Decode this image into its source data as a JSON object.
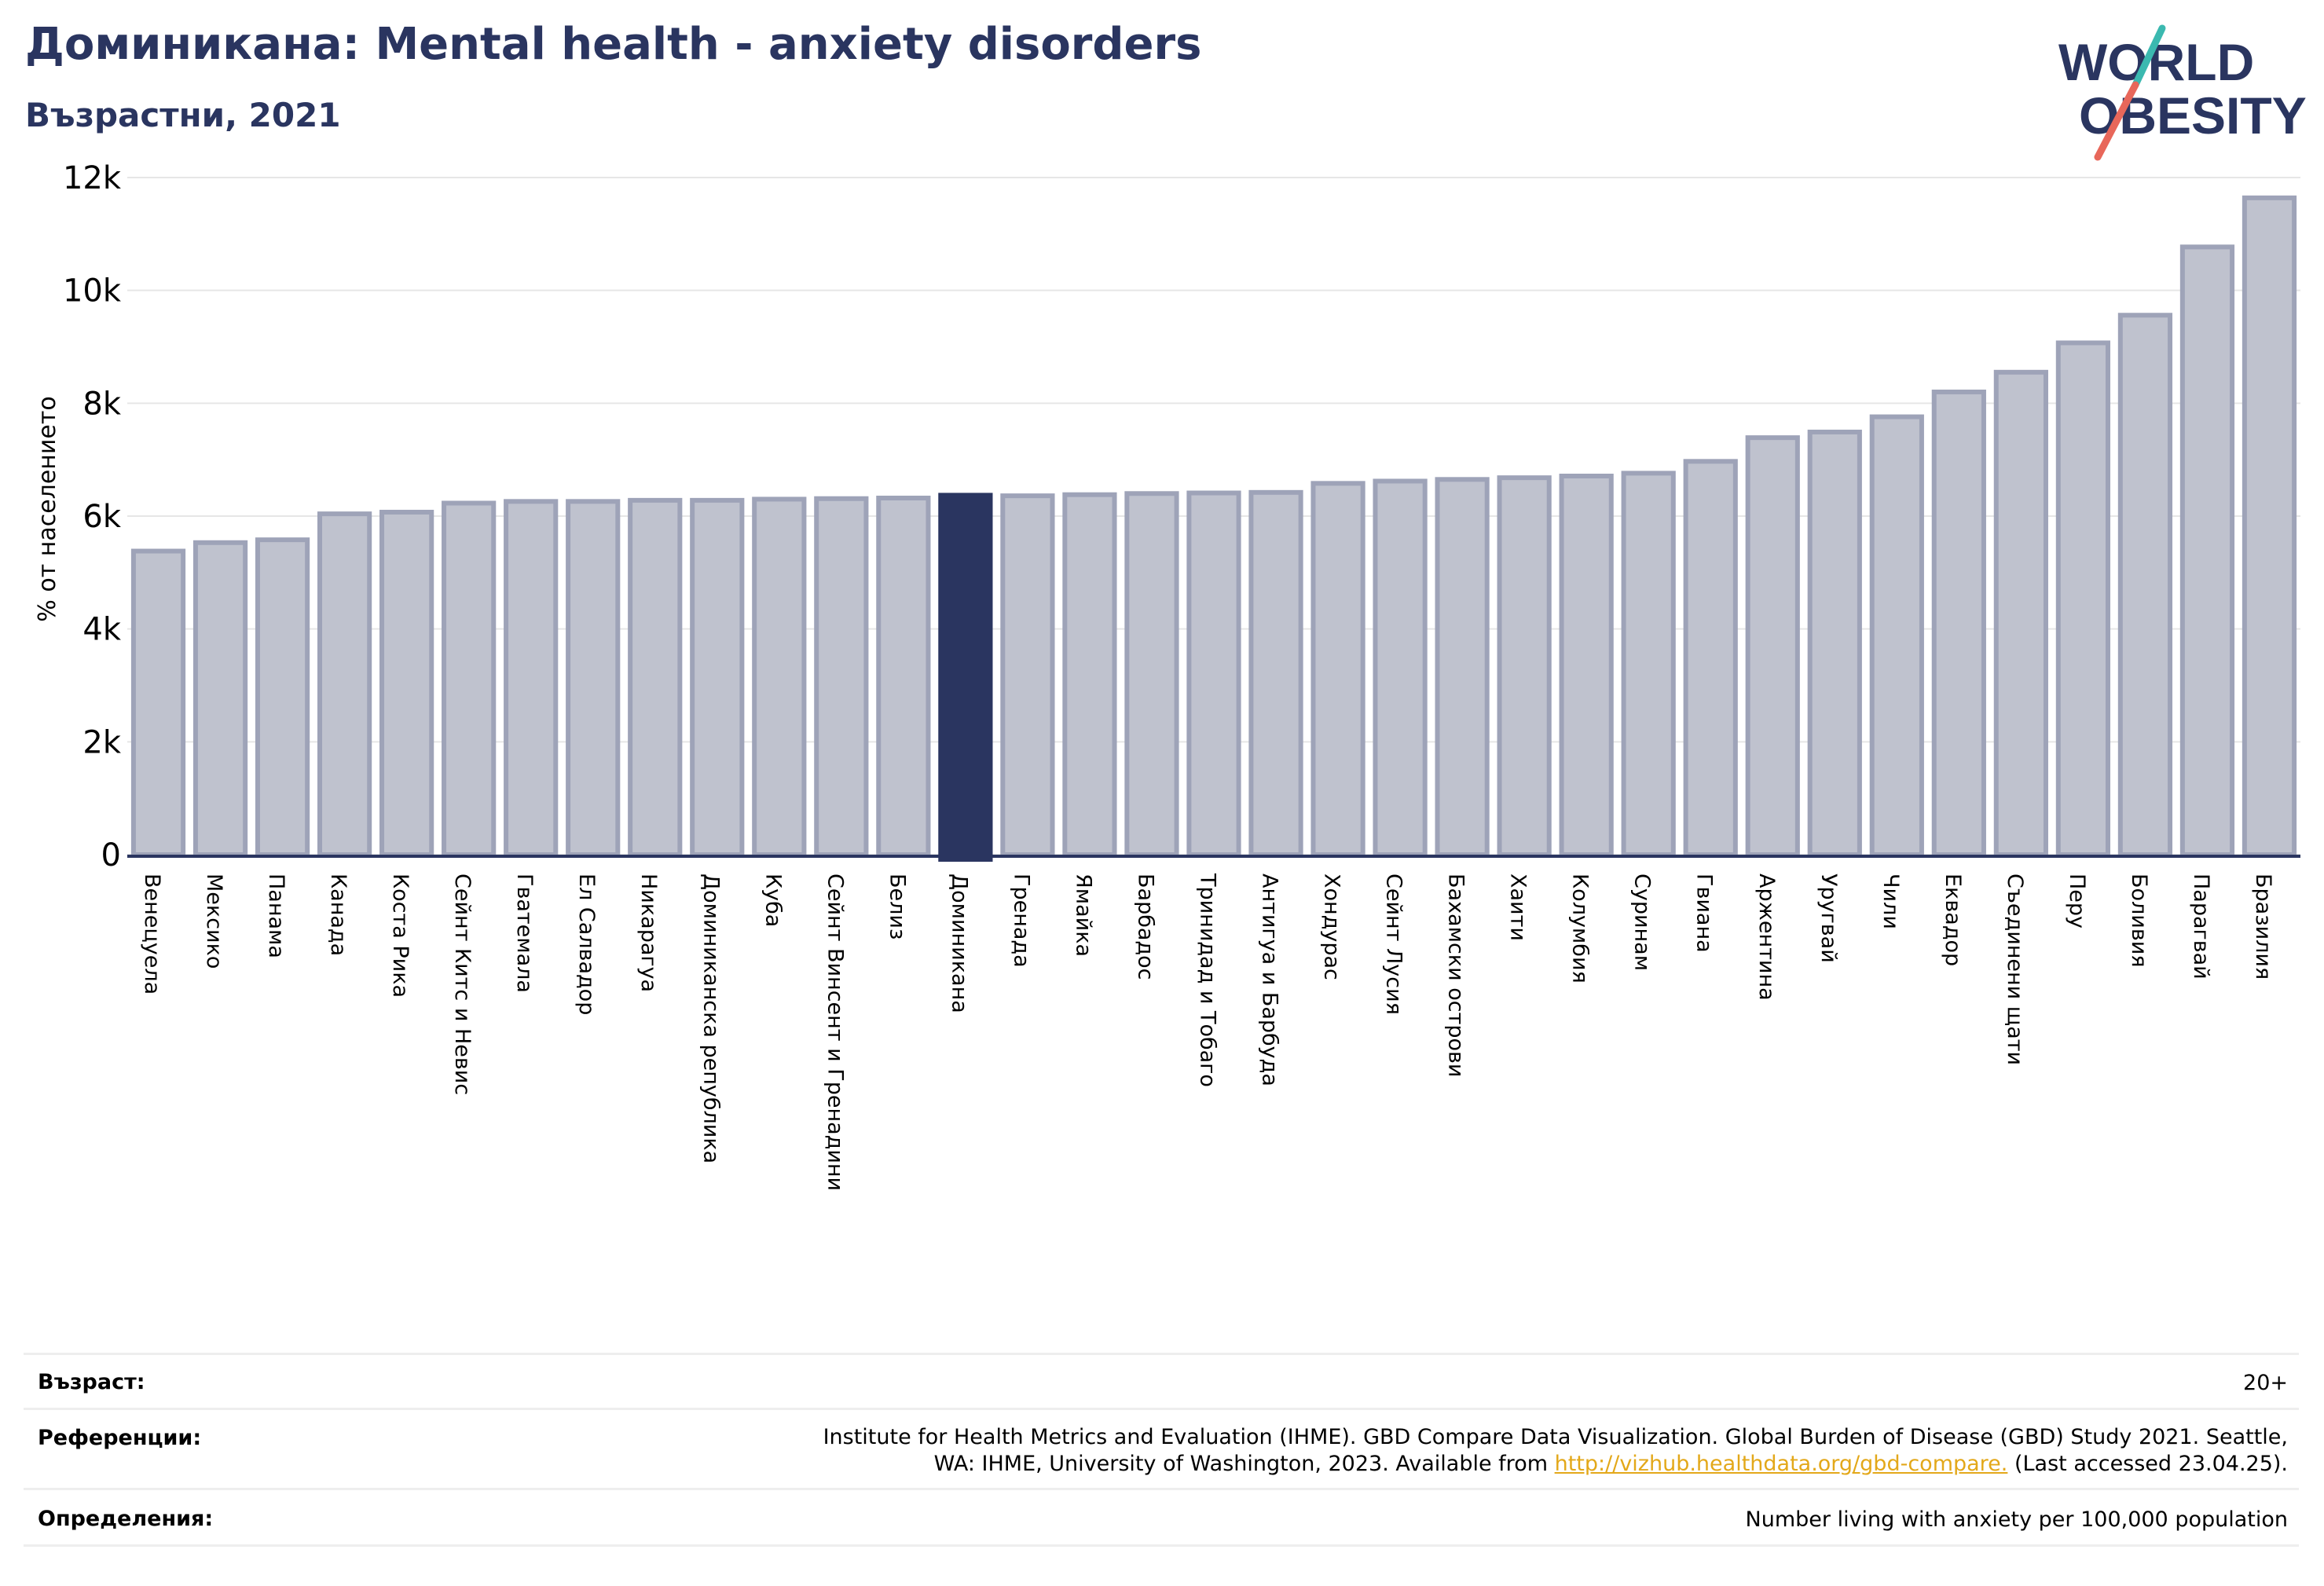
{
  "header": {
    "title": "Доминикана: Mental health - anxiety disorders",
    "subtitle": "Възрастни, 2021"
  },
  "logo": {
    "line1": "WORLD",
    "line2": "OBESITY",
    "colors": {
      "text": "#2a3560",
      "slash_teal": "#3bb9b0",
      "slash_red": "#e8675a"
    }
  },
  "colors": {
    "bar": "#bfc2ce",
    "bar_border": "#9ea3b8",
    "highlight": "#2a3560",
    "grid": "#e6e6e6",
    "axis": "#2a3560"
  },
  "chart_data": {
    "type": "bar",
    "ylabel": "% от населението",
    "ylim": [
      0,
      12000
    ],
    "yticks": [
      {
        "value": 0,
        "label": "0"
      },
      {
        "value": 2000,
        "label": "2k"
      },
      {
        "value": 4000,
        "label": "4k"
      },
      {
        "value": 6000,
        "label": "6k"
      },
      {
        "value": 8000,
        "label": "8k"
      },
      {
        "value": 10000,
        "label": "10k"
      },
      {
        "value": 12000,
        "label": "12k"
      }
    ],
    "grid": true,
    "highlight": "Доминикана",
    "categories": [
      "Венецуела",
      "Мексико",
      "Панама",
      "Канада",
      "Коста Рика",
      "Сейнт Китс и Невис",
      "Гватемала",
      "Ел Салвадор",
      "Никарагуа",
      "Доминиканска република",
      "Куба",
      "Сейнт Винсент и Гренадини",
      "Белиз",
      "Доминикана",
      "Гренада",
      "Ямайка",
      "Барбадос",
      "Тринидад и Тобаго",
      "Антигуа и Барбуда",
      "Хондурас",
      "Сейнт Лусия",
      "Бахамски острови",
      "Хаити",
      "Колумбия",
      "Суринам",
      "Гвиана",
      "Аржентина",
      "Уругвай",
      "Чили",
      "Еквадор",
      "Съединени щати",
      "Перу",
      "Боливия",
      "Парагвай",
      "Бразилия"
    ],
    "values": [
      5380,
      5530,
      5580,
      6040,
      6070,
      6230,
      6260,
      6260,
      6280,
      6280,
      6300,
      6310,
      6320,
      6370,
      6360,
      6380,
      6400,
      6410,
      6420,
      6580,
      6620,
      6650,
      6680,
      6710,
      6760,
      6970,
      7390,
      7490,
      7760,
      8200,
      8550,
      9070,
      9560,
      10770,
      11640
    ]
  },
  "footer": {
    "age_label": "Възраст:",
    "age_value": "20+",
    "ref_label": "Референции:",
    "ref_line1": "Institute for Health Metrics and Evaluation (IHME). GBD Compare Data Visualization. Global Burden of Disease (GBD) Study 2021. Seattle,",
    "ref_line2_pre": "WA: IHME, University of Washington, 2023. Available from ",
    "ref_link": "http://vizhub.healthdata.org/gbd-compare.",
    "ref_line2_post": " (Last accessed 23.04.25).",
    "def_label": "Определения:",
    "def_value": "Number living with anxiety per 100,000 population"
  }
}
